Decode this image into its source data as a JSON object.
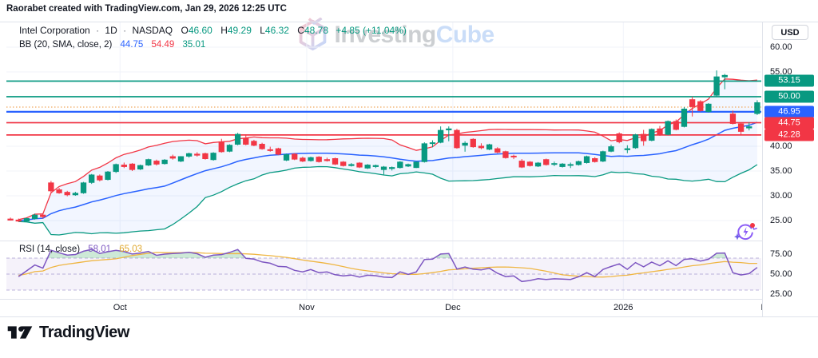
{
  "header": {
    "title": "Raorabet created with TradingView.com, Jan 29, 2026 12:25 UTC"
  },
  "legend": {
    "symbol": "Intel Corporation",
    "separator": "·",
    "timeframe": "1D",
    "exchange": "NASDAQ",
    "o_label": "O",
    "o": "46.60",
    "h_label": "H",
    "h": "49.29",
    "l_label": "L",
    "l": "46.32",
    "c_label": "C",
    "c": "48.78",
    "change": "+4.85 (+11.04%)",
    "bb_label": "BB (20, SMA, close, 2)",
    "bb_basis": "44.75",
    "bb_upper": "54.49",
    "bb_lower": "35.01"
  },
  "rsi_legend": {
    "label": "RSI (14, close)",
    "rsi_value": "58.01",
    "ma_value": "65.03"
  },
  "watermark": {
    "text_a": "Investing",
    "text_b": "Cube"
  },
  "price_axis": {
    "currency": "USD",
    "ticks": [
      {
        "v": 60,
        "label": "60.00"
      },
      {
        "v": 55,
        "label": "55.00"
      },
      {
        "v": 40,
        "label": "40.00"
      },
      {
        "v": 35,
        "label": "35.00"
      },
      {
        "v": 30,
        "label": "30.00"
      },
      {
        "v": 25,
        "label": "25.00"
      }
    ]
  },
  "footer": {
    "brand": "TradingView"
  },
  "chart_data": {
    "type": "candlestick",
    "title": "Intel Corporation · 1D · NASDAQ",
    "last_bar": {
      "open": 46.6,
      "high": 49.29,
      "low": 46.32,
      "close": 48.78,
      "change": "+4.85 (+11.04%)"
    },
    "colors": {
      "up": "#089981",
      "down": "#f23645",
      "grid": "#f0f3fa",
      "divider": "#e0e3eb"
    },
    "candles": [
      [
        25.3,
        25.6,
        25.0,
        25.1
      ],
      [
        25.1,
        25.4,
        24.7,
        24.9
      ],
      [
        24.9,
        25.6,
        24.8,
        25.4
      ],
      [
        25.4,
        26.4,
        25.2,
        26.1
      ],
      [
        26.1,
        26.4,
        25.4,
        25.8
      ],
      [
        32.6,
        33.0,
        30.7,
        31.0
      ],
      [
        31.2,
        31.6,
        30.4,
        30.6
      ],
      [
        30.7,
        31.0,
        29.9,
        30.2
      ],
      [
        30.2,
        30.8,
        30.0,
        30.5
      ],
      [
        30.6,
        32.8,
        30.4,
        32.6
      ],
      [
        32.7,
        34.4,
        32.4,
        34.2
      ],
      [
        34.0,
        34.3,
        32.9,
        33.2
      ],
      [
        33.3,
        35.0,
        33.1,
        34.8
      ],
      [
        34.9,
        36.5,
        34.6,
        36.3
      ],
      [
        36.2,
        36.7,
        35.6,
        35.9
      ],
      [
        36.4,
        36.6,
        35.0,
        35.3
      ],
      [
        35.4,
        36.3,
        35.2,
        36.1
      ],
      [
        36.2,
        37.5,
        36.0,
        37.3
      ],
      [
        37.0,
        37.3,
        36.1,
        36.4
      ],
      [
        36.5,
        37.4,
        36.3,
        37.2
      ],
      [
        37.9,
        38.3,
        37.3,
        37.6
      ],
      [
        37.0,
        38.0,
        36.8,
        37.9
      ],
      [
        38.0,
        38.7,
        37.7,
        38.5
      ],
      [
        38.4,
        38.8,
        37.9,
        38.2
      ],
      [
        38.5,
        38.7,
        37.3,
        37.5
      ],
      [
        37.3,
        38.8,
        37.1,
        38.6
      ],
      [
        40.9,
        41.5,
        38.7,
        38.9
      ],
      [
        39.0,
        40.4,
        38.8,
        40.2
      ],
      [
        40.4,
        42.7,
        40.2,
        42.4
      ],
      [
        41.6,
        42.3,
        40.2,
        40.4
      ],
      [
        41.0,
        41.3,
        40.0,
        40.2
      ],
      [
        40.4,
        40.7,
        39.3,
        39.5
      ],
      [
        39.3,
        39.9,
        38.9,
        39.2
      ],
      [
        39.5,
        39.7,
        38.2,
        38.4
      ],
      [
        37.2,
        38.5,
        37.0,
        38.3
      ],
      [
        38.4,
        38.6,
        37.2,
        37.4
      ],
      [
        37.6,
        37.9,
        36.8,
        37.0
      ],
      [
        37.1,
        37.9,
        36.9,
        37.7
      ],
      [
        37.8,
        38.0,
        36.7,
        36.9
      ],
      [
        37.3,
        37.7,
        36.9,
        37.1
      ],
      [
        37.5,
        37.7,
        36.2,
        36.4
      ],
      [
        36.8,
        37.0,
        35.9,
        36.1
      ],
      [
        36.1,
        36.6,
        35.9,
        36.3
      ],
      [
        36.6,
        36.8,
        35.6,
        35.8
      ],
      [
        35.6,
        36.4,
        35.4,
        36.2
      ],
      [
        35.9,
        36.3,
        35.6,
        36.1
      ],
      [
        35.3,
        36.0,
        34.3,
        35.8
      ],
      [
        35.5,
        35.9,
        35.1,
        35.7
      ],
      [
        35.7,
        37.0,
        35.5,
        36.8
      ],
      [
        36.0,
        36.5,
        35.8,
        36.3
      ],
      [
        35.7,
        36.9,
        35.6,
        36.8
      ],
      [
        36.9,
        40.8,
        36.7,
        40.5
      ],
      [
        40.6,
        41.2,
        39.8,
        40.7
      ],
      [
        40.8,
        44.0,
        40.6,
        43.2
      ],
      [
        43.3,
        44.0,
        41.0,
        43.5
      ],
      [
        43.2,
        43.5,
        39.5,
        39.7
      ],
      [
        40.2,
        41.0,
        38.9,
        40.6
      ],
      [
        41.4,
        41.6,
        39.7,
        39.9
      ],
      [
        40.0,
        40.6,
        39.4,
        39.7
      ],
      [
        39.4,
        40.5,
        39.2,
        40.3
      ],
      [
        39.5,
        39.8,
        38.6,
        38.8
      ],
      [
        38.9,
        39.1,
        37.5,
        37.7
      ],
      [
        38.0,
        38.3,
        37.4,
        37.9
      ],
      [
        37.0,
        37.4,
        35.6,
        35.8
      ],
      [
        36.8,
        37.0,
        35.9,
        36.1
      ],
      [
        36.0,
        36.8,
        35.8,
        36.6
      ],
      [
        37.3,
        37.5,
        36.1,
        36.3
      ],
      [
        36.4,
        36.9,
        36.0,
        36.5
      ],
      [
        35.9,
        36.6,
        35.7,
        36.4
      ],
      [
        36.2,
        36.7,
        35.6,
        36.3
      ],
      [
        36.3,
        37.1,
        36.1,
        36.9
      ],
      [
        36.7,
        38.1,
        36.5,
        37.9
      ],
      [
        37.5,
        37.8,
        36.7,
        36.9
      ],
      [
        37.0,
        39.1,
        36.8,
        38.9
      ],
      [
        39.0,
        40.3,
        38.8,
        39.9
      ],
      [
        42.5,
        42.8,
        40.6,
        40.9
      ],
      [
        39.3,
        40.2,
        38.6,
        39.5
      ],
      [
        39.7,
        42.5,
        39.5,
        42.3
      ],
      [
        42.4,
        43.3,
        40.1,
        41.1
      ],
      [
        41.2,
        43.6,
        41.0,
        43.4
      ],
      [
        43.5,
        44.1,
        42.1,
        42.3
      ],
      [
        42.4,
        45.2,
        42.2,
        45.0
      ],
      [
        45.0,
        45.4,
        43.2,
        43.4
      ],
      [
        44.0,
        47.9,
        43.8,
        47.5
      ],
      [
        49.4,
        50.0,
        46.0,
        48.0
      ],
      [
        49.0,
        49.3,
        47.0,
        47.2
      ],
      [
        47.0,
        48.7,
        46.8,
        48.5
      ],
      [
        50.3,
        55.3,
        50.0,
        54.0
      ],
      [
        54.0,
        54.6,
        51.5,
        54.3
      ],
      [
        46.5,
        47.2,
        44.4,
        44.6
      ],
      [
        44.5,
        44.8,
        42.3,
        43.0
      ],
      [
        43.7,
        44.8,
        43.2,
        43.93
      ],
      [
        46.6,
        49.29,
        46.32,
        48.78
      ]
    ],
    "month_ticks": [
      {
        "index": 13,
        "label": "Oct"
      },
      {
        "index": 36,
        "label": "Nov"
      },
      {
        "index": 54,
        "label": "Dec"
      },
      {
        "index": 75,
        "label": "2026"
      }
    ],
    "edge_time_label": "Feb",
    "levels": [
      {
        "price": 53.15,
        "label": "53.15",
        "color": "#089981"
      },
      {
        "price": 50.0,
        "label": "50.00",
        "color": "#089981"
      },
      {
        "price": 46.95,
        "label": "46.95",
        "color": "#2962ff"
      },
      {
        "price": 44.75,
        "label": "44.75",
        "color": "#f23645"
      },
      {
        "price": 42.28,
        "label": "42.28",
        "color": "#f23645"
      }
    ],
    "avg_price_line": {
      "price": 47.9,
      "color": "#f0a04f",
      "style": "dotted"
    },
    "bollinger": {
      "length": 20,
      "mult": 2,
      "colors": {
        "basis": "#2962ff",
        "upper": "#f23645",
        "lower": "#089981",
        "fill": "rgba(41,98,255,0.06)"
      },
      "last": {
        "basis": 44.75,
        "upper": 54.49,
        "lower": 35.01
      }
    },
    "rsi": {
      "length": 14,
      "overbought": 70,
      "middle": 50,
      "oversold": 30,
      "colors": {
        "rsi": "#7e57c2",
        "ma": "#efb643",
        "band": "rgba(126,87,194,0.08)",
        "dash": "#a69bd0",
        "ob_fill": "rgba(76,175,110,0.28)"
      },
      "ticks": [
        {
          "v": 75,
          "label": "75.00"
        },
        {
          "v": 50,
          "label": "50.00"
        },
        {
          "v": 25,
          "label": "25.00"
        }
      ],
      "last": {
        "rsi": "58.01",
        "ma": "65.03"
      }
    }
  }
}
